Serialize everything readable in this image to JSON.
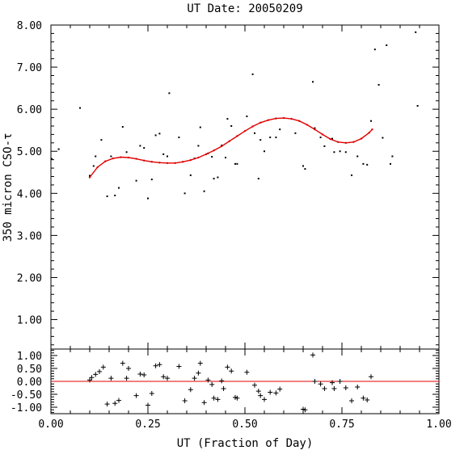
{
  "chart_data": {
    "type": "scatter",
    "title": "UT Date: 20050209",
    "xlabel": "UT (Fraction of Day)",
    "ylabel": "350 micron CSO-τ",
    "xlim": [
      0,
      1
    ],
    "x_ticks": [
      "0.00",
      "0.25",
      "0.50",
      "0.75",
      "1.00"
    ],
    "colors": {
      "points": "#000000",
      "fit": "#e00000"
    },
    "panels": [
      {
        "name": "tau",
        "ylim": [
          0.3,
          8.0
        ],
        "y_ticks": [
          "1.00",
          "2.00",
          "3.00",
          "4.00",
          "5.00",
          "6.00",
          "7.00",
          "8.00"
        ],
        "series": [
          {
            "type": "scatter",
            "points": [
              [
                0.002,
                4.82
              ],
              [
                0.02,
                5.05
              ],
              [
                0.075,
                6.03
              ],
              [
                0.1,
                4.42
              ],
              [
                0.11,
                4.65
              ],
              [
                0.115,
                4.88
              ],
              [
                0.13,
                5.27
              ],
              [
                0.145,
                3.93
              ],
              [
                0.155,
                4.88
              ],
              [
                0.165,
                3.95
              ],
              [
                0.175,
                4.13
              ],
              [
                0.185,
                5.58
              ],
              [
                0.195,
                4.98
              ],
              [
                0.22,
                4.3
              ],
              [
                0.23,
                5.13
              ],
              [
                0.24,
                5.08
              ],
              [
                0.25,
                3.88
              ],
              [
                0.26,
                4.33
              ],
              [
                0.27,
                5.38
              ],
              [
                0.28,
                5.42
              ],
              [
                0.29,
                4.93
              ],
              [
                0.3,
                4.88
              ],
              [
                0.305,
                6.38
              ],
              [
                0.33,
                5.33
              ],
              [
                0.345,
                4.0
              ],
              [
                0.36,
                4.43
              ],
              [
                0.37,
                4.83
              ],
              [
                0.38,
                5.13
              ],
              [
                0.385,
                5.57
              ],
              [
                0.395,
                4.05
              ],
              [
                0.405,
                4.95
              ],
              [
                0.415,
                4.87
              ],
              [
                0.42,
                4.35
              ],
              [
                0.43,
                4.38
              ],
              [
                0.44,
                5.14
              ],
              [
                0.45,
                4.85
              ],
              [
                0.455,
                5.77
              ],
              [
                0.465,
                5.6
              ],
              [
                0.475,
                4.7
              ],
              [
                0.48,
                4.7
              ],
              [
                0.505,
                5.83
              ],
              [
                0.52,
                6.83
              ],
              [
                0.525,
                5.43
              ],
              [
                0.535,
                4.35
              ],
              [
                0.54,
                5.27
              ],
              [
                0.55,
                5.0
              ],
              [
                0.565,
                5.33
              ],
              [
                0.58,
                5.33
              ],
              [
                0.59,
                5.52
              ],
              [
                0.63,
                5.43
              ],
              [
                0.65,
                4.65
              ],
              [
                0.655,
                4.58
              ],
              [
                0.675,
                6.65
              ],
              [
                0.68,
                5.55
              ],
              [
                0.695,
                5.33
              ],
              [
                0.705,
                5.12
              ],
              [
                0.725,
                5.3
              ],
              [
                0.73,
                4.98
              ],
              [
                0.745,
                5.0
              ],
              [
                0.76,
                4.98
              ],
              [
                0.775,
                4.43
              ],
              [
                0.79,
                4.88
              ],
              [
                0.805,
                4.7
              ],
              [
                0.815,
                4.68
              ],
              [
                0.825,
                5.72
              ],
              [
                0.835,
                7.42
              ],
              [
                0.845,
                6.58
              ],
              [
                0.855,
                5.32
              ],
              [
                0.865,
                7.52
              ],
              [
                0.875,
                4.7
              ],
              [
                0.88,
                4.88
              ],
              [
                0.94,
                7.83
              ],
              [
                0.945,
                6.08
              ]
            ]
          },
          {
            "type": "line",
            "points": [
              [
                0.1,
                4.38
              ],
              [
                0.12,
                4.62
              ],
              [
                0.14,
                4.76
              ],
              [
                0.16,
                4.83
              ],
              [
                0.18,
                4.86
              ],
              [
                0.2,
                4.85
              ],
              [
                0.22,
                4.82
              ],
              [
                0.24,
                4.78
              ],
              [
                0.26,
                4.75
              ],
              [
                0.28,
                4.73
              ],
              [
                0.3,
                4.72
              ],
              [
                0.32,
                4.72
              ],
              [
                0.34,
                4.75
              ],
              [
                0.36,
                4.79
              ],
              [
                0.38,
                4.85
              ],
              [
                0.4,
                4.93
              ],
              [
                0.42,
                5.02
              ],
              [
                0.44,
                5.12
              ],
              [
                0.46,
                5.24
              ],
              [
                0.48,
                5.36
              ],
              [
                0.5,
                5.48
              ],
              [
                0.52,
                5.59
              ],
              [
                0.54,
                5.68
              ],
              [
                0.56,
                5.74
              ],
              [
                0.58,
                5.78
              ],
              [
                0.6,
                5.79
              ],
              [
                0.62,
                5.77
              ],
              [
                0.64,
                5.72
              ],
              [
                0.66,
                5.63
              ],
              [
                0.68,
                5.52
              ],
              [
                0.7,
                5.4
              ],
              [
                0.72,
                5.29
              ],
              [
                0.74,
                5.22
              ],
              [
                0.76,
                5.2
              ],
              [
                0.78,
                5.22
              ],
              [
                0.8,
                5.3
              ],
              [
                0.82,
                5.44
              ],
              [
                0.828,
                5.52
              ]
            ]
          }
        ]
      },
      {
        "name": "residuals",
        "ylim": [
          -1.25,
          1.25
        ],
        "y_ticks": [
          "1.00",
          "0.50",
          "0.00",
          "-0.50",
          "-1.00"
        ],
        "y_tick_values": [
          1.0,
          0.5,
          0.0,
          -0.5,
          -1.0
        ],
        "series": [
          {
            "type": "scatter-plus",
            "points": [
              [
                0.1,
                0.05
              ],
              [
                0.105,
                0.15
              ],
              [
                0.115,
                0.27
              ],
              [
                0.125,
                0.38
              ],
              [
                0.135,
                0.55
              ],
              [
                0.145,
                -0.88
              ],
              [
                0.155,
                0.12
              ],
              [
                0.165,
                -0.85
              ],
              [
                0.175,
                -0.74
              ],
              [
                0.185,
                0.7
              ],
              [
                0.195,
                0.12
              ],
              [
                0.2,
                0.5
              ],
              [
                0.22,
                -0.55
              ],
              [
                0.23,
                0.28
              ],
              [
                0.24,
                0.25
              ],
              [
                0.25,
                -0.92
              ],
              [
                0.26,
                -0.47
              ],
              [
                0.27,
                0.6
              ],
              [
                0.28,
                0.65
              ],
              [
                0.29,
                0.18
              ],
              [
                0.3,
                0.12
              ],
              [
                0.33,
                0.58
              ],
              [
                0.345,
                -0.75
              ],
              [
                0.36,
                -0.32
              ],
              [
                0.37,
                0.12
              ],
              [
                0.38,
                0.32
              ],
              [
                0.385,
                0.7
              ],
              [
                0.395,
                -0.82
              ],
              [
                0.405,
                0.05
              ],
              [
                0.415,
                -0.12
              ],
              [
                0.42,
                -0.65
              ],
              [
                0.43,
                -0.7
              ],
              [
                0.44,
                0.02
              ],
              [
                0.445,
                -0.28
              ],
              [
                0.455,
                0.55
              ],
              [
                0.465,
                0.4
              ],
              [
                0.475,
                -0.62
              ],
              [
                0.48,
                -0.65
              ],
              [
                0.505,
                0.35
              ],
              [
                0.525,
                -0.15
              ],
              [
                0.535,
                -0.38
              ],
              [
                0.54,
                -0.55
              ],
              [
                0.55,
                -0.7
              ],
              [
                0.565,
                -0.42
              ],
              [
                0.58,
                -0.45
              ],
              [
                0.59,
                -0.3
              ],
              [
                0.65,
                -1.08
              ],
              [
                0.655,
                -1.1
              ],
              [
                0.675,
                1.02
              ],
              [
                0.68,
                0.0
              ],
              [
                0.695,
                -0.1
              ],
              [
                0.705,
                -0.28
              ],
              [
                0.725,
                -0.05
              ],
              [
                0.73,
                -0.28
              ],
              [
                0.745,
                0.0
              ],
              [
                0.76,
                -0.25
              ],
              [
                0.775,
                -0.75
              ],
              [
                0.79,
                -0.22
              ],
              [
                0.805,
                -0.65
              ],
              [
                0.815,
                -0.72
              ],
              [
                0.825,
                0.18
              ]
            ]
          },
          {
            "type": "hline",
            "y": 0.0
          }
        ]
      }
    ]
  }
}
